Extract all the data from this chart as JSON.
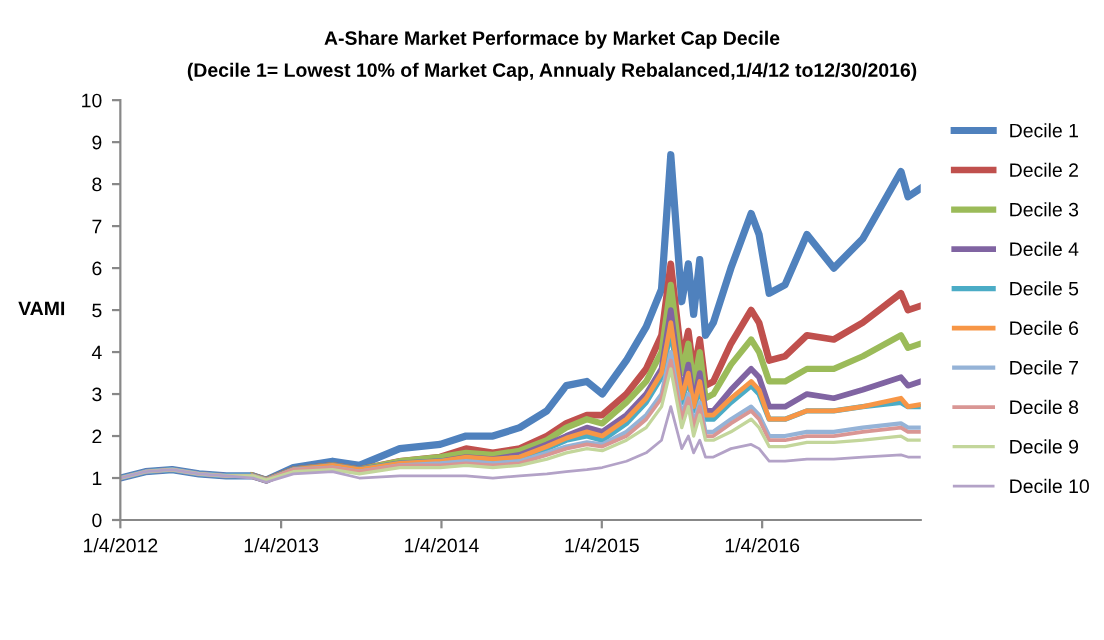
{
  "chart_data": {
    "type": "line",
    "title": "A-Share Market Performace by Market Cap Decile",
    "subtitle": "(Decile 1= Lowest 10% of Market Cap, Annualy Rebalanced,1/4/12 to12/30/2016)",
    "ylabel": "VAMI",
    "x": [
      "2012-01-04",
      "2012-03-01",
      "2012-05-01",
      "2012-07-01",
      "2012-09-01",
      "2012-11-01",
      "2012-12-01",
      "2013-02-01",
      "2013-05-01",
      "2013-07-01",
      "2013-10-01",
      "2014-01-01",
      "2014-03-01",
      "2014-05-01",
      "2014-07-01",
      "2014-09-01",
      "2014-10-15",
      "2014-12-01",
      "2015-01-05",
      "2015-03-01",
      "2015-04-15",
      "2015-05-20",
      "2015-06-10",
      "2015-07-05",
      "2015-07-20",
      "2015-08-01",
      "2015-08-15",
      "2015-08-28",
      "2015-09-15",
      "2015-10-25",
      "2015-12-10",
      "2015-12-28",
      "2016-01-20",
      "2016-02-25",
      "2016-04-15",
      "2016-06-15",
      "2016-08-20",
      "2016-11-15",
      "2016-12-01",
      "2016-12-30"
    ],
    "xlim": [
      "2012-01-04",
      "2016-12-30"
    ],
    "xticks": [
      {
        "value": "2012-01-04",
        "label": "1/4/2012"
      },
      {
        "value": "2013-01-04",
        "label": "1/4/2013"
      },
      {
        "value": "2014-01-04",
        "label": "1/4/2014"
      },
      {
        "value": "2015-01-04",
        "label": "1/4/2015"
      },
      {
        "value": "2016-01-04",
        "label": "1/4/2016"
      }
    ],
    "ylim": [
      0,
      10
    ],
    "yticks": [
      0,
      1,
      2,
      3,
      4,
      5,
      6,
      7,
      8,
      9,
      10
    ],
    "legend": "right",
    "series": [
      {
        "name": "Decile 1",
        "color": "#4f81bd",
        "values": [
          1.0,
          1.15,
          1.2,
          1.1,
          1.05,
          1.05,
          0.95,
          1.25,
          1.4,
          1.3,
          1.7,
          1.8,
          2.0,
          2.0,
          2.2,
          2.6,
          3.2,
          3.3,
          3.0,
          3.8,
          4.6,
          5.5,
          8.7,
          5.2,
          6.1,
          4.9,
          6.2,
          4.4,
          4.7,
          6.0,
          7.3,
          6.8,
          5.4,
          5.6,
          6.8,
          6.0,
          6.7,
          8.3,
          7.7,
          7.9
        ]
      },
      {
        "name": "Decile 2",
        "color": "#c0504d",
        "values": [
          null,
          null,
          null,
          null,
          null,
          1.05,
          0.95,
          1.2,
          1.3,
          1.2,
          1.4,
          1.5,
          1.7,
          1.6,
          1.7,
          2.0,
          2.3,
          2.5,
          2.5,
          3.0,
          3.6,
          4.4,
          6.1,
          3.8,
          4.5,
          3.5,
          4.3,
          3.2,
          3.3,
          4.2,
          5.0,
          4.7,
          3.8,
          3.9,
          4.4,
          4.3,
          4.7,
          5.4,
          5.0,
          5.1
        ]
      },
      {
        "name": "Decile 3",
        "color": "#9bbb59",
        "values": [
          null,
          null,
          null,
          null,
          null,
          1.05,
          0.95,
          1.2,
          1.3,
          1.2,
          1.4,
          1.5,
          1.6,
          1.55,
          1.65,
          1.9,
          2.2,
          2.4,
          2.3,
          2.8,
          3.3,
          4.0,
          5.6,
          3.5,
          4.2,
          3.2,
          4.0,
          2.9,
          3.0,
          3.7,
          4.3,
          4.0,
          3.3,
          3.3,
          3.6,
          3.6,
          3.9,
          4.4,
          4.1,
          4.2
        ]
      },
      {
        "name": "Decile 4",
        "color": "#8064a2",
        "values": [
          1.0,
          1.15,
          1.2,
          1.1,
          1.05,
          1.05,
          0.95,
          1.2,
          1.3,
          1.2,
          1.35,
          1.4,
          1.5,
          1.45,
          1.55,
          1.8,
          2.0,
          2.2,
          2.1,
          2.5,
          3.0,
          3.6,
          5.0,
          3.0,
          3.7,
          2.8,
          3.5,
          2.6,
          2.6,
          3.1,
          3.6,
          3.4,
          2.7,
          2.7,
          3.0,
          2.9,
          3.1,
          3.4,
          3.2,
          3.3
        ]
      },
      {
        "name": "Decile 5",
        "color": "#4bacc6",
        "values": [
          1.0,
          1.15,
          1.2,
          1.1,
          1.05,
          1.05,
          0.95,
          1.2,
          1.3,
          1.2,
          1.35,
          1.4,
          1.45,
          1.4,
          1.5,
          1.7,
          1.9,
          2.0,
          1.9,
          2.3,
          2.8,
          3.4,
          4.5,
          2.8,
          3.4,
          2.6,
          3.2,
          2.4,
          2.4,
          2.8,
          3.2,
          3.0,
          2.4,
          2.4,
          2.6,
          2.6,
          2.7,
          2.8,
          2.7,
          2.7
        ]
      },
      {
        "name": "Decile 6",
        "color": "#f79646",
        "values": [
          null,
          null,
          null,
          null,
          null,
          1.05,
          0.95,
          1.2,
          1.3,
          1.2,
          1.35,
          1.4,
          1.5,
          1.45,
          1.5,
          1.75,
          1.95,
          2.1,
          2.0,
          2.4,
          2.9,
          3.5,
          4.7,
          2.9,
          3.5,
          2.7,
          3.3,
          2.5,
          2.5,
          2.9,
          3.3,
          3.1,
          2.4,
          2.4,
          2.6,
          2.6,
          2.7,
          2.9,
          2.7,
          2.75
        ]
      },
      {
        "name": "Decile 7",
        "color": "#95b3d7",
        "values": [
          1.0,
          1.15,
          1.2,
          1.1,
          1.05,
          1.05,
          0.95,
          1.2,
          1.25,
          1.15,
          1.3,
          1.35,
          1.4,
          1.35,
          1.4,
          1.6,
          1.75,
          1.85,
          1.8,
          2.1,
          2.5,
          3.0,
          4.0,
          2.5,
          3.0,
          2.3,
          2.8,
          2.1,
          2.1,
          2.4,
          2.7,
          2.5,
          2.0,
          2.0,
          2.1,
          2.1,
          2.2,
          2.3,
          2.2,
          2.2
        ]
      },
      {
        "name": "Decile 8",
        "color": "#d99694",
        "values": [
          1.0,
          1.15,
          1.2,
          1.1,
          1.05,
          1.05,
          0.95,
          1.2,
          1.25,
          1.15,
          1.3,
          1.3,
          1.35,
          1.3,
          1.35,
          1.55,
          1.7,
          1.8,
          1.75,
          2.0,
          2.4,
          2.9,
          3.8,
          2.4,
          2.9,
          2.2,
          2.7,
          2.0,
          2.0,
          2.3,
          2.6,
          2.4,
          1.9,
          1.9,
          2.0,
          2.0,
          2.1,
          2.2,
          2.1,
          2.1
        ]
      },
      {
        "name": "Decile 9",
        "color": "#c3d69b",
        "values": [
          1.0,
          1.15,
          1.2,
          1.1,
          1.05,
          1.05,
          0.95,
          1.15,
          1.2,
          1.1,
          1.25,
          1.25,
          1.3,
          1.25,
          1.3,
          1.45,
          1.6,
          1.7,
          1.65,
          1.9,
          2.2,
          2.7,
          3.6,
          2.2,
          2.7,
          2.0,
          2.5,
          1.9,
          1.9,
          2.1,
          2.4,
          2.2,
          1.75,
          1.75,
          1.85,
          1.85,
          1.9,
          2.0,
          1.9,
          1.9
        ]
      },
      {
        "name": "Decile 10",
        "color": "#b3a2c7",
        "values": [
          1.0,
          1.15,
          1.2,
          1.1,
          1.05,
          1.0,
          0.9,
          1.1,
          1.15,
          1.0,
          1.05,
          1.05,
          1.05,
          1.0,
          1.05,
          1.1,
          1.15,
          1.2,
          1.25,
          1.4,
          1.6,
          1.9,
          2.7,
          1.7,
          2.0,
          1.6,
          1.9,
          1.5,
          1.5,
          1.7,
          1.8,
          1.7,
          1.4,
          1.4,
          1.45,
          1.45,
          1.5,
          1.55,
          1.5,
          1.5
        ]
      }
    ]
  }
}
